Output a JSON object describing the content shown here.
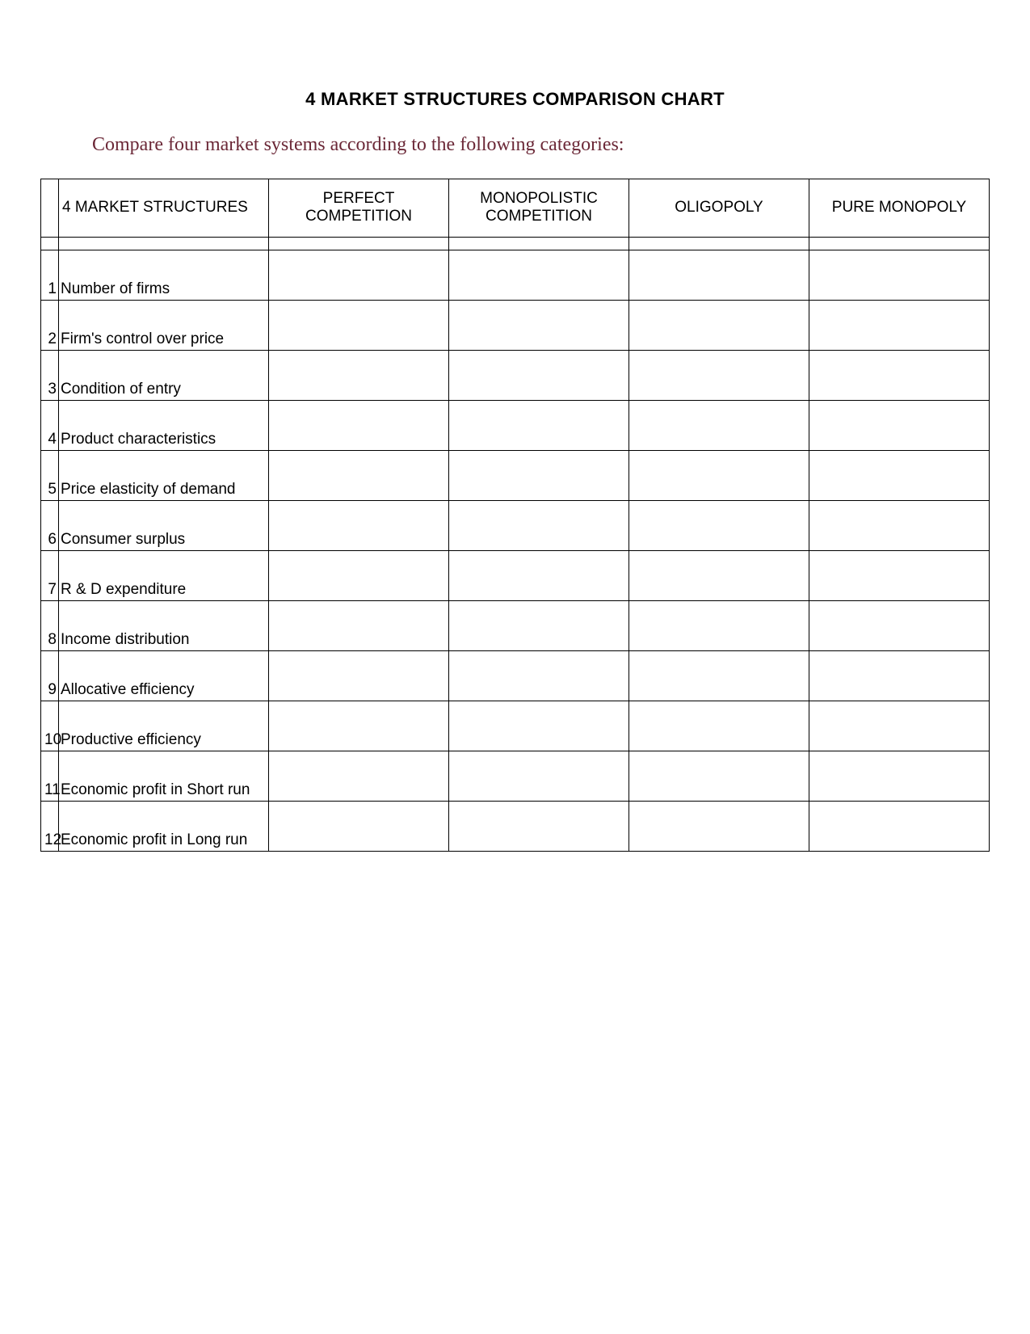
{
  "title": "4 MARKET STRUCTURES COMPARISON CHART",
  "subtitle": "Compare four market systems according to the following categories:",
  "table": {
    "header": {
      "rowlabel": "4 MARKET STRUCTURES",
      "columns": [
        "PERFECT COMPETITION",
        "MONOPOLISTIC COMPETITION",
        "OLIGOPOLY",
        "PURE MONOPOLY"
      ]
    },
    "rows": [
      {
        "num": "1",
        "label": "Number of firms",
        "cells": [
          "",
          "",
          "",
          ""
        ]
      },
      {
        "num": "2",
        "label": "Firm's control over price",
        "cells": [
          "",
          "",
          "",
          ""
        ]
      },
      {
        "num": "3",
        "label": "Condition of entry",
        "cells": [
          "",
          "",
          "",
          ""
        ]
      },
      {
        "num": "4",
        "label": "Product characteristics",
        "cells": [
          "",
          "",
          "",
          ""
        ]
      },
      {
        "num": "5",
        "label": "Price elasticity of demand",
        "cells": [
          "",
          "",
          "",
          ""
        ]
      },
      {
        "num": "6",
        "label": "Consumer surplus",
        "cells": [
          "",
          "",
          "",
          ""
        ]
      },
      {
        "num": "7",
        "label": "R & D expenditure",
        "cells": [
          "",
          "",
          "",
          ""
        ]
      },
      {
        "num": "8",
        "label": "Income distribution",
        "cells": [
          "",
          "",
          "",
          ""
        ]
      },
      {
        "num": "9",
        "label": "Allocative efficiency",
        "cells": [
          "",
          "",
          "",
          ""
        ]
      },
      {
        "num": "10",
        "label": "Productive efficiency",
        "cells": [
          "",
          "",
          "",
          ""
        ]
      },
      {
        "num": "11",
        "label": "Economic profit in Short run",
        "cells": [
          "",
          "",
          "",
          ""
        ]
      },
      {
        "num": "12",
        "label": "Economic profit in Long run",
        "cells": [
          "",
          "",
          "",
          ""
        ]
      }
    ]
  },
  "style": {
    "background_color": "#ffffff",
    "border_color": "#000000",
    "title_color": "#000000",
    "subtitle_color": "#6b2837",
    "body_font": "Trebuchet MS",
    "subtitle_font": "Georgia",
    "title_fontsize": 22,
    "subtitle_fontsize": 24,
    "cell_fontsize": 19,
    "header_row_height": 72,
    "spacer_row_height": 16,
    "data_row_height": 62,
    "num_col_width": 22,
    "label_col_width": 260
  }
}
